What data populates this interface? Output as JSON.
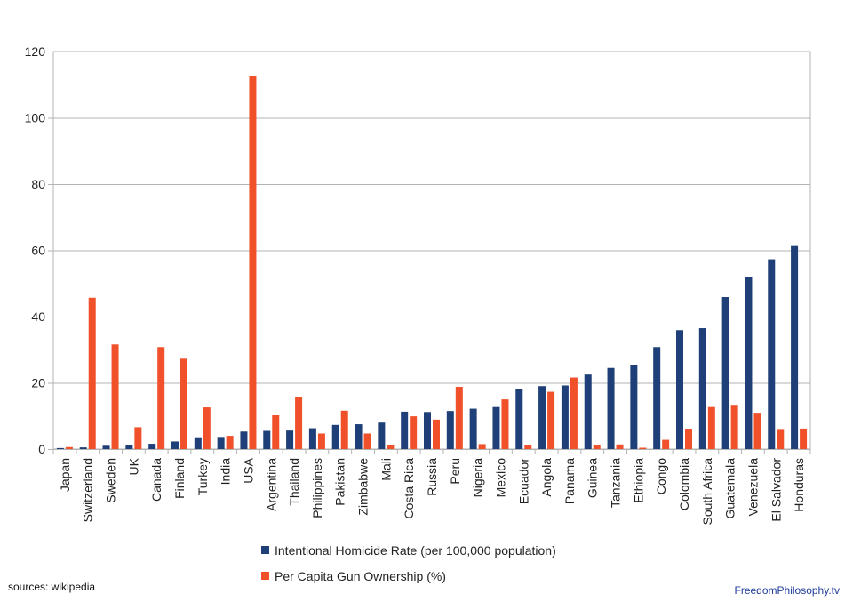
{
  "chart_data": {
    "type": "bar",
    "ylim": [
      0,
      120
    ],
    "yticks": [
      0,
      20,
      40,
      60,
      80,
      100,
      120
    ],
    "grid": true,
    "legend_position": "bottom",
    "categories": [
      "Japan",
      "Switzerland",
      "Sweden",
      "UK",
      "Canada",
      "Finland",
      "Turkey",
      "India",
      "USA",
      "Argentina",
      "Thailand",
      "Philippines",
      "Pakistan",
      "Zimbabwe",
      "Mali",
      "Costa Rica",
      "Russia",
      "Peru",
      "Nigeria",
      "Mexico",
      "Ecuador",
      "Angola",
      "Panama",
      "Guinea",
      "Tanzania",
      "Ethiopia",
      "Congo",
      "Colombia",
      "South Africa",
      "Guatemala",
      "Venezuela",
      "El Salvador",
      "Honduras"
    ],
    "series": [
      {
        "name": "Intentional Homicide Rate (per 100,000 population)",
        "color": "#1e3f78",
        "values": [
          0.3,
          0.5,
          1.0,
          1.2,
          1.6,
          2.3,
          3.3,
          3.4,
          5.3,
          5.5,
          5.6,
          6.3,
          7.3,
          7.5,
          8.0,
          11.3,
          11.2,
          11.5,
          12.2,
          12.7,
          18.2,
          19.0,
          19.2,
          22.5,
          24.5,
          25.5,
          30.8,
          35.9,
          36.5,
          45.9,
          52.0,
          57.3,
          61.3
        ]
      },
      {
        "name": "Per Capita Gun Ownership (%)",
        "color": "#f0502a",
        "values": [
          0.6,
          45.7,
          31.6,
          6.6,
          30.8,
          27.3,
          12.6,
          4.0,
          112.6,
          10.2,
          15.6,
          4.7,
          11.6,
          4.7,
          1.3,
          9.9,
          8.9,
          18.8,
          1.5,
          15.0,
          1.3,
          17.3,
          21.6,
          1.2,
          1.4,
          0.4,
          2.8,
          5.9,
          12.7,
          13.1,
          10.7,
          5.8,
          6.2
        ]
      }
    ]
  },
  "footer": {
    "source": "sources: wikipedia",
    "brand": "FreedomPhilosophy.tv"
  }
}
